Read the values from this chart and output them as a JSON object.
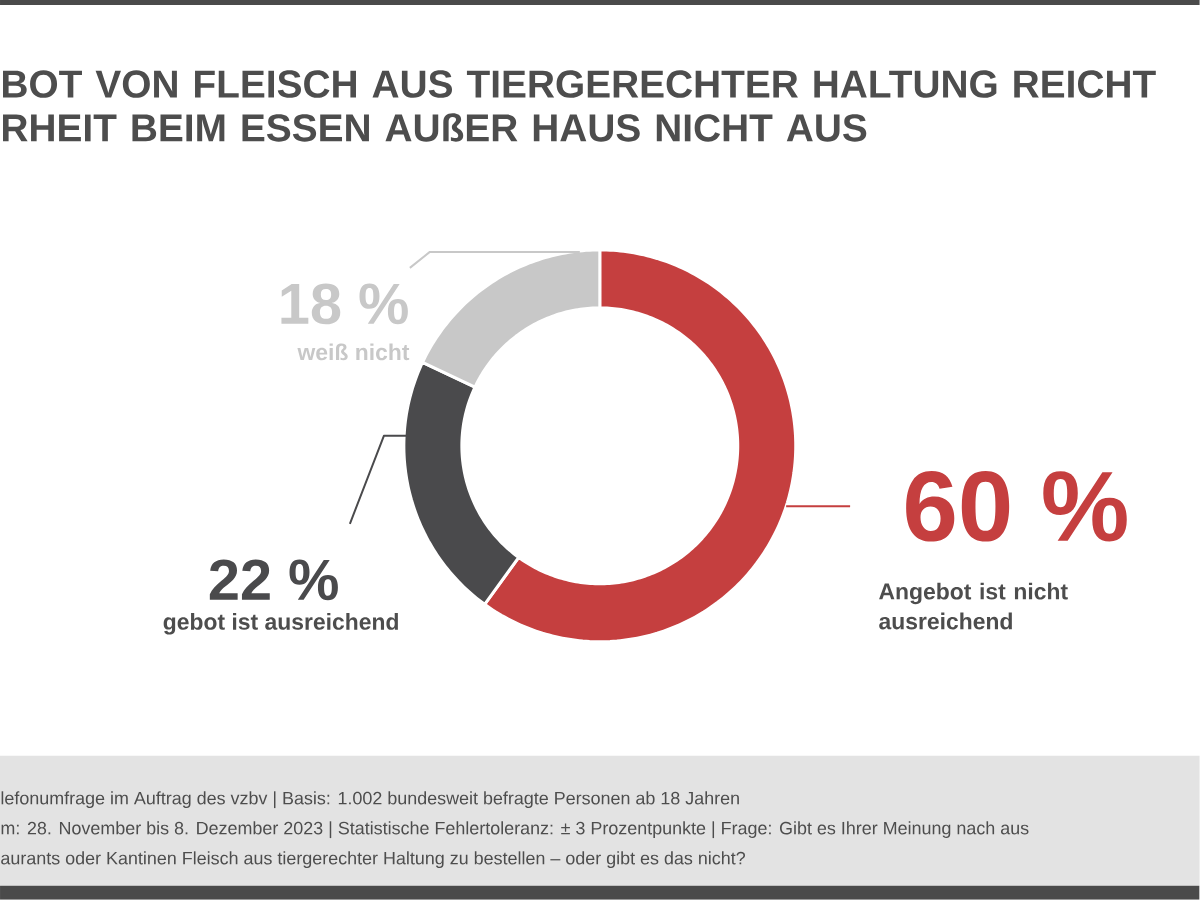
{
  "chart_data": {
    "type": "donut",
    "title": "BOT VON FLEISCH AUS TIERGERECHTER HALTUNG REICHT RHEIT BEIM ESSEN AUßER HAUS NICHT AUS",
    "categories": [
      "Angebot ist nicht ausreichend",
      "gebot ist ausreichend",
      "weiß nicht"
    ],
    "values": [
      60,
      22,
      18
    ],
    "value_labels": [
      "60 %",
      "22 %",
      "18 %"
    ],
    "colors": [
      "#c53f3f",
      "#4a4a4c",
      "#c8c8c8"
    ],
    "annotations": [
      "lefonumfrage im Auftrag des vzbv | Basis: 1.002 bundesweit befragte Personen ab 18 Jahren",
      "m: 28. November bis 8. Dezember 2023 | Statistische Fehlertoleranz: ± 3 Prozentpunkte | Frage: Gibt es Ihrer Meinung nach aus",
      "aurants oder Kantinen Fleisch aus tiergerechter Haltung zu bestellen – oder gibt es das nicht?"
    ]
  }
}
